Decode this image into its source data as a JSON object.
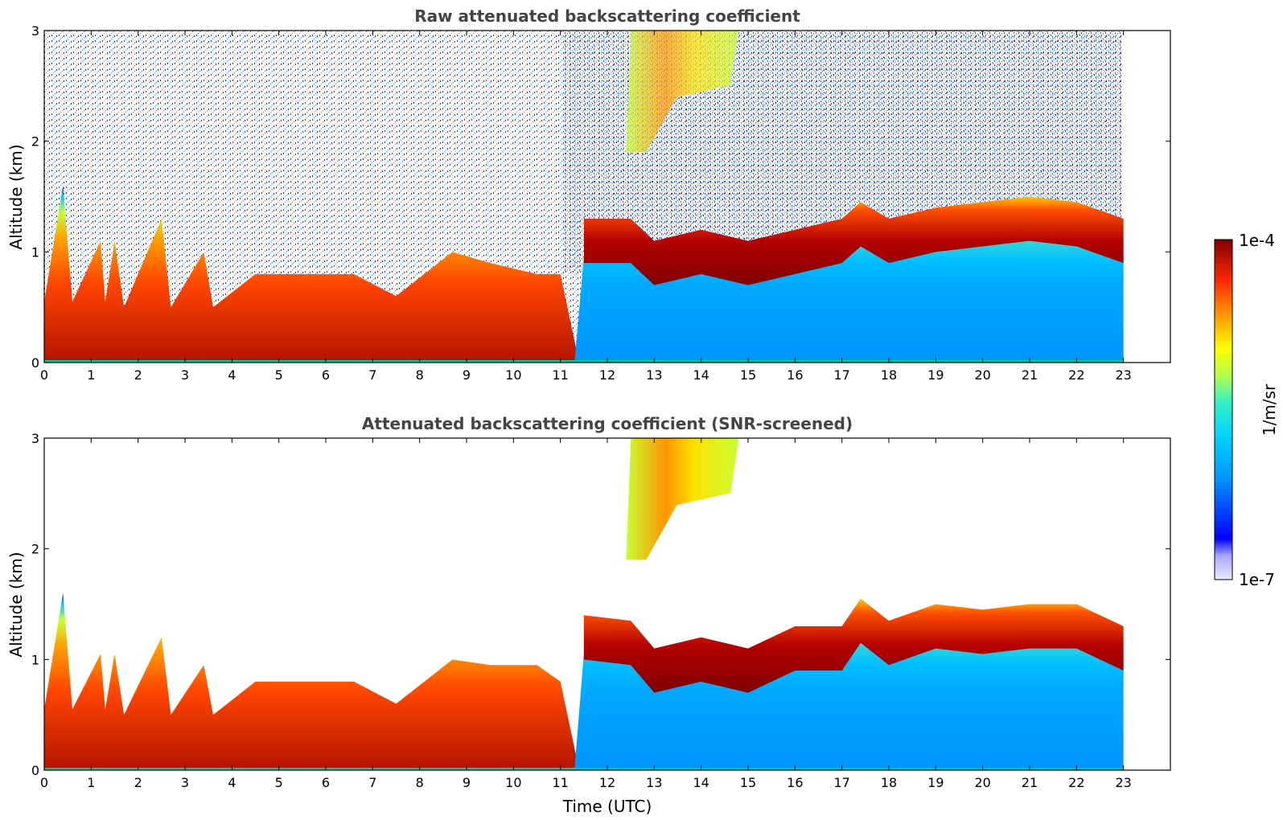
{
  "chart_data": [
    {
      "type": "heatmap",
      "title": "Raw attenuated backscattering coefficient",
      "xlabel": "",
      "ylabel": "Altitude (km)",
      "xlim": [
        0,
        24
      ],
      "ylim": [
        0,
        3
      ],
      "xticks": [
        "0",
        "1",
        "2",
        "3",
        "4",
        "5",
        "6",
        "7",
        "8",
        "9",
        "10",
        "11",
        "12",
        "13",
        "14",
        "15",
        "16",
        "17",
        "18",
        "19",
        "20",
        "21",
        "22",
        "23"
      ],
      "yticks": [
        "0",
        "1",
        "2",
        "3"
      ],
      "data_end_hour": 23,
      "boundary_layer_top_km": [
        [
          0,
          0.55
        ],
        [
          0.4,
          1.6
        ],
        [
          0.6,
          0.55
        ],
        [
          1.2,
          1.1
        ],
        [
          1.3,
          0.55
        ],
        [
          1.5,
          1.1
        ],
        [
          1.7,
          0.5
        ],
        [
          2.5,
          1.3
        ],
        [
          2.7,
          0.5
        ],
        [
          3.4,
          1.0
        ],
        [
          3.6,
          0.5
        ],
        [
          4.5,
          0.8
        ],
        [
          5.5,
          0.8
        ],
        [
          6.6,
          0.8
        ],
        [
          7.5,
          0.6
        ],
        [
          8.7,
          1.0
        ],
        [
          9.5,
          0.9
        ],
        [
          10.5,
          0.8
        ],
        [
          11.0,
          0.8
        ],
        [
          11.5,
          1.3
        ],
        [
          12.5,
          1.3
        ],
        [
          13.0,
          1.1
        ],
        [
          14.0,
          1.2
        ],
        [
          15.0,
          1.1
        ],
        [
          16.0,
          1.2
        ],
        [
          17.0,
          1.3
        ],
        [
          17.4,
          1.45
        ],
        [
          18.0,
          1.3
        ],
        [
          19.0,
          1.4
        ],
        [
          20.0,
          1.45
        ],
        [
          21.0,
          1.5
        ],
        [
          22.0,
          1.45
        ],
        [
          23.0,
          1.3
        ]
      ],
      "high_cloud": {
        "x_range_hours": [
          12.4,
          14.8
        ],
        "altitude_range_km": [
          1.9,
          3.0
        ]
      }
    },
    {
      "type": "heatmap",
      "title": "Attenuated backscattering coefficient (SNR-screened)",
      "xlabel": "Time (UTC)",
      "ylabel": "Altitude (km)",
      "xlim": [
        0,
        24
      ],
      "ylim": [
        0,
        3
      ],
      "xticks": [
        "0",
        "1",
        "2",
        "3",
        "4",
        "5",
        "6",
        "7",
        "8",
        "9",
        "10",
        "11",
        "12",
        "13",
        "14",
        "15",
        "16",
        "17",
        "18",
        "19",
        "20",
        "21",
        "22",
        "23"
      ],
      "yticks": [
        "0",
        "1",
        "2",
        "3"
      ],
      "data_end_hour": 23,
      "boundary_layer_top_km": [
        [
          0,
          0.55
        ],
        [
          0.4,
          1.6
        ],
        [
          0.6,
          0.55
        ],
        [
          1.2,
          1.05
        ],
        [
          1.3,
          0.55
        ],
        [
          1.5,
          1.05
        ],
        [
          1.7,
          0.5
        ],
        [
          2.5,
          1.2
        ],
        [
          2.7,
          0.5
        ],
        [
          3.4,
          0.95
        ],
        [
          3.6,
          0.5
        ],
        [
          4.5,
          0.8
        ],
        [
          5.5,
          0.8
        ],
        [
          6.6,
          0.8
        ],
        [
          7.5,
          0.6
        ],
        [
          8.7,
          1.0
        ],
        [
          9.5,
          0.95
        ],
        [
          10.5,
          0.95
        ],
        [
          11.0,
          0.8
        ],
        [
          11.5,
          1.4
        ],
        [
          12.5,
          1.35
        ],
        [
          13.0,
          1.1
        ],
        [
          14.0,
          1.2
        ],
        [
          15.0,
          1.1
        ],
        [
          16.0,
          1.3
        ],
        [
          17.0,
          1.3
        ],
        [
          17.4,
          1.55
        ],
        [
          18.0,
          1.35
        ],
        [
          19.0,
          1.5
        ],
        [
          20.0,
          1.45
        ],
        [
          21.0,
          1.5
        ],
        [
          22.0,
          1.5
        ],
        [
          23.0,
          1.3
        ]
      ],
      "high_cloud": {
        "x_range_hours": [
          12.4,
          14.8
        ],
        "altitude_range_km": [
          1.9,
          3.0
        ]
      }
    }
  ],
  "colorbar": {
    "label": "1/m/sr",
    "max_label": "1e-4",
    "min_label": "1e-7",
    "colormap": [
      "#e8e8ff",
      "#a8a8ff",
      "#5050ff",
      "#0000ff",
      "#0064ff",
      "#00b4ff",
      "#1ee6e6",
      "#64ff96",
      "#c8ff32",
      "#ffff00",
      "#ffc800",
      "#ff8c00",
      "#ff4600",
      "#e60000",
      "#b40000",
      "#800000"
    ]
  },
  "colors": {
    "clear_air_bg": "#ffffff",
    "aerosol_layer": "#ff5000",
    "residual_layer": "#00a5ff"
  }
}
